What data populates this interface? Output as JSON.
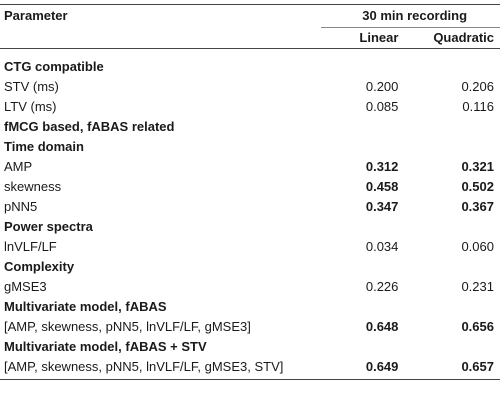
{
  "header": {
    "parameter": "Parameter",
    "group": "30 min recording",
    "linear": "Linear",
    "quadratic": "Quadratic"
  },
  "rows": [
    {
      "type": "section",
      "label": "CTG compatible"
    },
    {
      "type": "data",
      "label": "STV (ms)",
      "linear": "0.200",
      "quadratic": "0.206",
      "bold": false
    },
    {
      "type": "data",
      "label": "LTV (ms)",
      "linear": "0.085",
      "quadratic": "0.116",
      "bold": false
    },
    {
      "type": "section",
      "label": "fMCG based, fABAS related"
    },
    {
      "type": "section",
      "label": "Time domain"
    },
    {
      "type": "data",
      "label": "AMP",
      "linear": "0.312",
      "quadratic": "0.321",
      "bold": true
    },
    {
      "type": "data",
      "label": "skewness",
      "linear": "0.458",
      "quadratic": "0.502",
      "bold": true
    },
    {
      "type": "data",
      "label": "pNN5",
      "linear": "0.347",
      "quadratic": "0.367",
      "bold": true
    },
    {
      "type": "section",
      "label": "Power spectra"
    },
    {
      "type": "data",
      "label": "lnVLF/LF",
      "linear": "0.034",
      "quadratic": "0.060",
      "bold": false
    },
    {
      "type": "section",
      "label": "Complexity"
    },
    {
      "type": "data",
      "label": "gMSE3",
      "linear": "0.226",
      "quadratic": "0.231",
      "bold": false
    },
    {
      "type": "section",
      "label": "Multivariate model, fABAS"
    },
    {
      "type": "data",
      "label": "[AMP, skewness, pNN5, lnVLF/LF, gMSE3]",
      "linear": "0.648",
      "quadratic": "0.656",
      "bold": true
    },
    {
      "type": "section",
      "label": "Multivariate model, fABAS + STV"
    },
    {
      "type": "data",
      "label": "[AMP, skewness, pNN5, lnVLF/LF, gMSE3, STV]",
      "linear": "0.649",
      "quadratic": "0.657",
      "bold": true
    }
  ]
}
